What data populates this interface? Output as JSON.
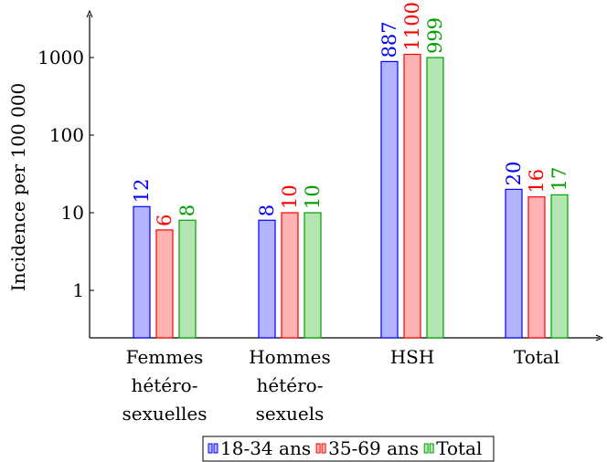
{
  "chart_data": {
    "type": "bar",
    "title": "",
    "xlabel": "",
    "ylabel": "Incidence per 100 000",
    "y_scale": "log",
    "ylim": [
      0.27,
      4200
    ],
    "y_ticks": [
      {
        "value": 1,
        "label": "1"
      },
      {
        "value": 10,
        "label": "10"
      },
      {
        "value": 100,
        "label": "100"
      },
      {
        "value": 1000,
        "label": "1000"
      }
    ],
    "categories": [
      [
        "Femmes",
        "hétéro-",
        "sexuelles"
      ],
      [
        "Hommes",
        "hétéro-",
        "sexuels"
      ],
      [
        "HSH"
      ],
      [
        "Total"
      ]
    ],
    "series": [
      {
        "name": "18-34 ans",
        "fill": "#b3b3ff",
        "stroke": "#0000ff",
        "values": [
          12,
          8,
          887,
          20
        ],
        "labels": [
          "12",
          "8",
          "887",
          "20"
        ]
      },
      {
        "name": "35-69 ans",
        "fill": "#ffb3b3",
        "stroke": "#ff0000",
        "values": [
          6,
          10,
          1100,
          16
        ],
        "labels": [
          "6",
          "10",
          "1100",
          "16"
        ]
      },
      {
        "name": "Total",
        "fill": "#b3e6b3",
        "stroke": "#00a000",
        "values": [
          8,
          10,
          999,
          17
        ],
        "labels": [
          "8",
          "10",
          "999",
          "17"
        ]
      }
    ],
    "grid": false,
    "legend_position": "bottom"
  }
}
